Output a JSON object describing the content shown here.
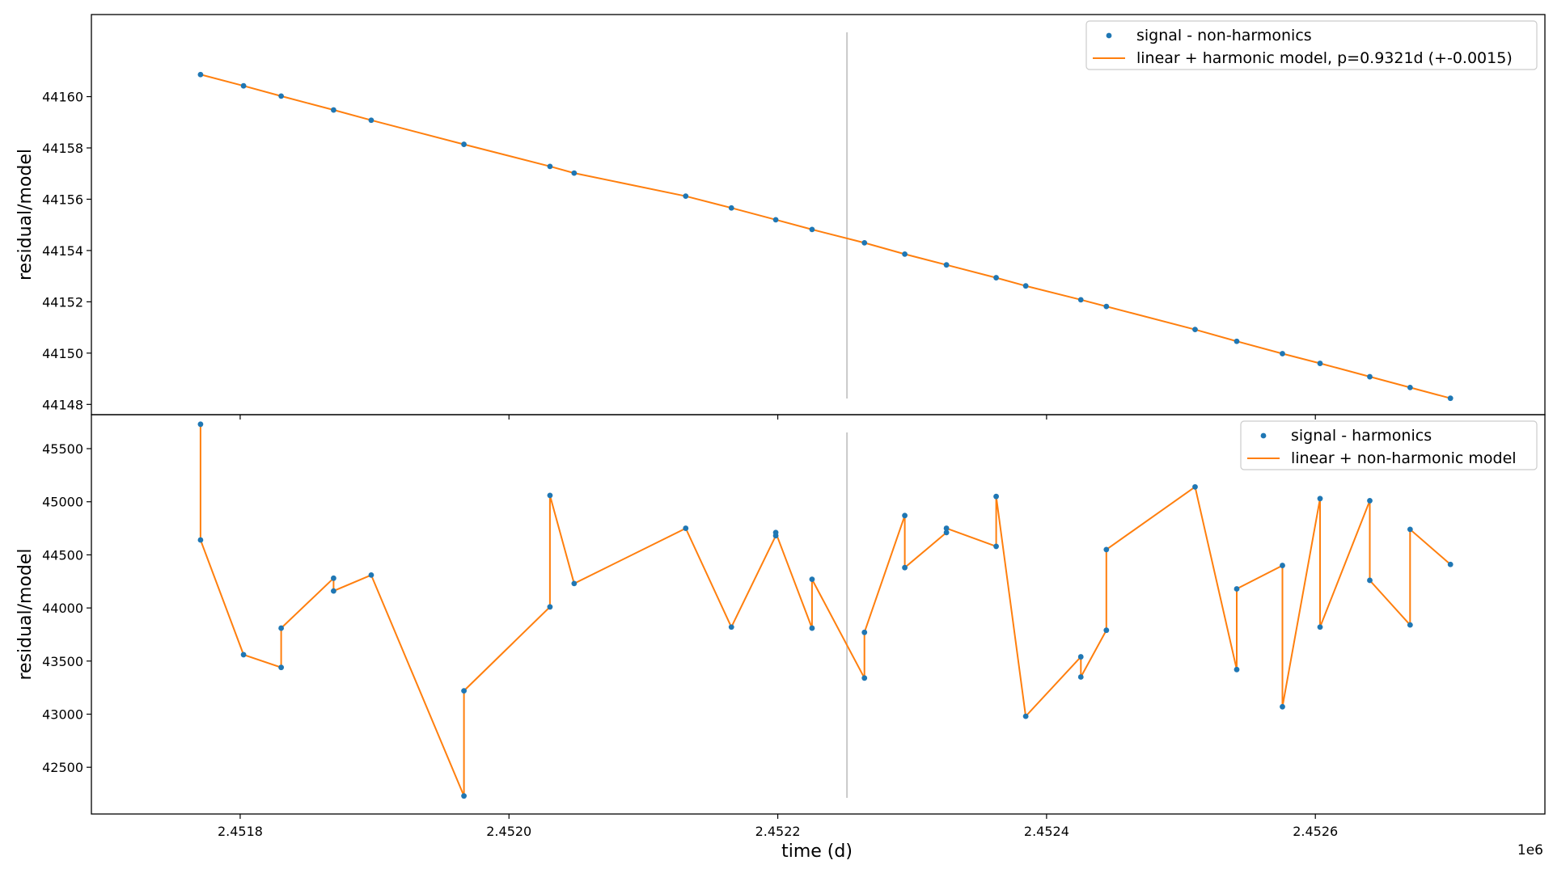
{
  "figure": {
    "xlabel": "time (d)",
    "x_offset_label": "1e6",
    "vline_x": 2452251.5
  },
  "chart_data": [
    {
      "type": "scatter+line",
      "ylabel": "residual/model",
      "xlim": [
        2451727,
        2452679
      ],
      "ylim": [
        44147.6,
        44163.2
      ],
      "x_ticks": [
        2451800,
        2452000,
        2452200,
        2452400,
        2452600
      ],
      "x_tick_labels": [
        "2.4518",
        "2.4520",
        "2.4522",
        "2.4524",
        "2.4526"
      ],
      "y_ticks": [
        44148,
        44150,
        44152,
        44154,
        44156,
        44158,
        44160
      ],
      "y_tick_labels": [
        "44148",
        "44150",
        "44152",
        "44154",
        "44156",
        "44158",
        "44160"
      ],
      "legend_location": "top-right",
      "series": [
        {
          "name": "signal - non-harmonics",
          "kind": "scatter",
          "color": "#1f77b4"
        },
        {
          "name": "linear + harmonic model, p=0.9321d (+-0.0015)",
          "kind": "line",
          "color": "#ff7f0e"
        }
      ],
      "points": [
        [
          2451770.5,
          44160.86
        ],
        [
          2451802.5,
          44160.42
        ],
        [
          2451830.5,
          44160.02
        ],
        [
          2451869.5,
          44159.48
        ],
        [
          2451897.5,
          44159.08
        ],
        [
          2451966.5,
          44158.14
        ],
        [
          2452030.5,
          44157.28
        ],
        [
          2452048.5,
          44157.02
        ],
        [
          2452131.5,
          44156.12
        ],
        [
          2452165.5,
          44155.66
        ],
        [
          2452198.5,
          44155.2
        ],
        [
          2452225.5,
          44154.82
        ],
        [
          2452264.5,
          44154.3
        ],
        [
          2452294.5,
          44153.86
        ],
        [
          2452325.5,
          44153.44
        ],
        [
          2452362.5,
          44152.94
        ],
        [
          2452384.5,
          44152.62
        ],
        [
          2452425.5,
          44152.08
        ],
        [
          2452444.5,
          44151.82
        ],
        [
          2452510.5,
          44150.92
        ],
        [
          2452541.5,
          44150.46
        ],
        [
          2452575.5,
          44149.98
        ],
        [
          2452603.5,
          44149.6
        ],
        [
          2452640.5,
          44149.08
        ],
        [
          2452670.5,
          44148.66
        ],
        [
          2452700.5,
          44148.24
        ]
      ]
    },
    {
      "type": "scatter+line",
      "ylabel": "residual/model",
      "xlim": [
        2451727,
        2452679
      ],
      "ylim": [
        42060,
        45820
      ],
      "x_ticks": [
        2451800,
        2452000,
        2452200,
        2452400,
        2452600
      ],
      "x_tick_labels": [
        "2.4518",
        "2.4520",
        "2.4522",
        "2.4524",
        "2.4526"
      ],
      "y_ticks": [
        42500,
        43000,
        43500,
        44000,
        44500,
        45000,
        45500
      ],
      "y_tick_labels": [
        "42500",
        "43000",
        "43500",
        "44000",
        "44500",
        "45000",
        "45500"
      ],
      "legend_location": "top-right",
      "series": [
        {
          "name": "signal - harmonics",
          "kind": "scatter",
          "color": "#1f77b4"
        },
        {
          "name": "linear + non-harmonic model",
          "kind": "line",
          "color": "#ff7f0e"
        }
      ],
      "points": [
        [
          2451770.5,
          45730
        ],
        [
          2451770.5,
          44640
        ],
        [
          2451802.5,
          43560
        ],
        [
          2451830.5,
          43440
        ],
        [
          2451830.5,
          43810
        ],
        [
          2451869.5,
          44280
        ],
        [
          2451869.5,
          44160
        ],
        [
          2451897.5,
          44310
        ],
        [
          2451966.5,
          42230
        ],
        [
          2451966.5,
          43220
        ],
        [
          2452030.5,
          44010
        ],
        [
          2452030.5,
          45060
        ],
        [
          2452048.5,
          44230
        ],
        [
          2452131.5,
          44750
        ],
        [
          2452165.5,
          43820
        ],
        [
          2452198.5,
          44680
        ],
        [
          2452198.5,
          44710
        ],
        [
          2452225.5,
          43810
        ],
        [
          2452225.5,
          44270
        ],
        [
          2452264.5,
          43340
        ],
        [
          2452264.5,
          43770
        ],
        [
          2452294.5,
          44870
        ],
        [
          2452294.5,
          44380
        ],
        [
          2452325.5,
          44710
        ],
        [
          2452325.5,
          44750
        ],
        [
          2452362.5,
          44580
        ],
        [
          2452362.5,
          45050
        ],
        [
          2452384.5,
          42980
        ],
        [
          2452425.5,
          43540
        ],
        [
          2452425.5,
          43350
        ],
        [
          2452444.5,
          43790
        ],
        [
          2452444.5,
          44550
        ],
        [
          2452510.5,
          45140
        ],
        [
          2452541.5,
          43420
        ],
        [
          2452541.5,
          44180
        ],
        [
          2452575.5,
          44400
        ],
        [
          2452575.5,
          43070
        ],
        [
          2452603.5,
          45030
        ],
        [
          2452603.5,
          43820
        ],
        [
          2452640.5,
          45010
        ],
        [
          2452640.5,
          44260
        ],
        [
          2452670.5,
          43840
        ],
        [
          2452670.5,
          44740
        ],
        [
          2452700.5,
          44410
        ]
      ]
    }
  ]
}
